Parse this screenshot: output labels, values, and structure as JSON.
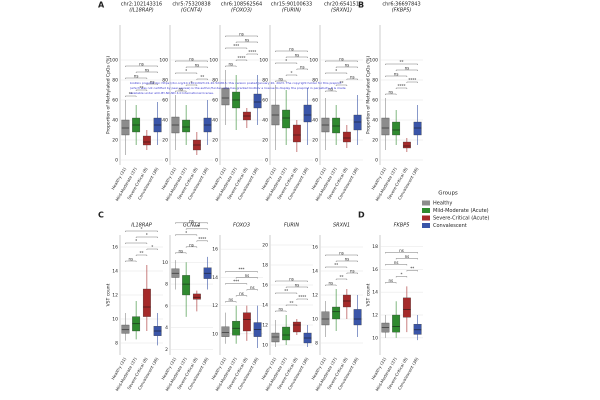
{
  "chart_data": [
    {
      "type": "box",
      "panel": "A",
      "title": "chr2:102143316",
      "subtitle": "(IL18RAP)",
      "ylabel": "Proportion of Methylated CpGs (%)",
      "categories": [
        "Healthy (31)",
        "Mild-Moderate (37)",
        "Severe-Critical (8)",
        "Convalescent (36)"
      ],
      "values": [
        [
          5,
          25,
          32,
          40,
          60
        ],
        [
          15,
          28,
          35,
          42,
          55
        ],
        [
          10,
          15,
          18,
          24,
          30
        ],
        [
          15,
          28,
          35,
          42,
          58
        ]
      ],
      "ylim": [
        -5,
        135
      ],
      "yticks": [
        0,
        20,
        40,
        60,
        80,
        100
      ],
      "significance": [
        "**",
        "**",
        "ns",
        "ns",
        "ns",
        "ns"
      ]
    },
    {
      "type": "box",
      "title": "chr5:75320838",
      "subtitle": "(GCNT4)",
      "categories": [
        "Healthy (31)",
        "Mild-Moderate (37)",
        "Severe-Critical (8)",
        "Convalescent (36)"
      ],
      "values": [
        [
          10,
          27,
          35,
          43,
          65
        ],
        [
          15,
          28,
          33,
          40,
          55
        ],
        [
          5,
          10,
          15,
          20,
          28
        ],
        [
          15,
          28,
          35,
          42,
          60
        ]
      ],
      "ylim": [
        -5,
        135
      ],
      "yticks": [
        0,
        20,
        40,
        60,
        80,
        100
      ],
      "significance": [
        "ns",
        "*",
        "**",
        "*",
        "ns",
        "ns"
      ]
    },
    {
      "type": "box",
      "title": "chr6:108562564",
      "subtitle": "(FOXO3)",
      "categories": [
        "Healthy (31)",
        "Mild-Moderate (37)",
        "Severe-Critical (8)",
        "Convalescent (36)"
      ],
      "values": [
        [
          35,
          55,
          62,
          72,
          90
        ],
        [
          30,
          52,
          60,
          68,
          85
        ],
        [
          32,
          40,
          44,
          48,
          52
        ],
        [
          35,
          52,
          58,
          66,
          85
        ]
      ],
      "ylim": [
        -5,
        135
      ],
      "yticks": [
        0,
        20,
        40,
        60,
        80,
        100
      ],
      "significance": [
        "ns",
        "****",
        "****",
        "***",
        "ns",
        "ns"
      ]
    },
    {
      "type": "box",
      "title": "chr15:90100633",
      "subtitle": "(FURIN)",
      "categories": [
        "Healthy (31)",
        "Mild-Moderate (37)",
        "Severe-Critical (8)",
        "Convalescent (36)"
      ],
      "values": [
        [
          10,
          35,
          45,
          55,
          75
        ],
        [
          15,
          32,
          42,
          50,
          70
        ],
        [
          8,
          18,
          25,
          35,
          40
        ],
        [
          15,
          38,
          45,
          55,
          72
        ]
      ],
      "ylim": [
        -5,
        135
      ],
      "yticks": [
        0,
        20,
        40,
        60,
        80,
        100
      ],
      "significance": [
        "ns",
        "*",
        "ns",
        "*",
        "ns",
        "ns"
      ]
    },
    {
      "type": "box",
      "title": "chr20:654151",
      "subtitle": "(SRXN1)",
      "categories": [
        "Healthy (31)",
        "Mild-Moderate (37)",
        "Severe-Critical (8)",
        "Convalescent (36)"
      ],
      "values": [
        [
          10,
          28,
          35,
          42,
          62
        ],
        [
          15,
          27,
          34,
          42,
          55
        ],
        [
          12,
          18,
          22,
          28,
          35
        ],
        [
          15,
          30,
          38,
          45,
          65
        ]
      ],
      "ylim": [
        -5,
        135
      ],
      "yticks": [
        0,
        20,
        40,
        60,
        80,
        100
      ],
      "significance": [
        "ns",
        "**",
        "ns",
        "*",
        "ns",
        "ns"
      ]
    },
    {
      "type": "box",
      "panel": "B",
      "title": "chr6:36697843",
      "subtitle": "(FKBP5)",
      "ylabel": "Proportion of Methylated CpGs (%)",
      "categories": [
        "Healthy (31)",
        "Mild-Moderate (37)",
        "Severe-Critical (8)",
        "Convalescent (36)"
      ],
      "values": [
        [
          10,
          25,
          32,
          42,
          62
        ],
        [
          15,
          25,
          30,
          38,
          50
        ],
        [
          8,
          12,
          14,
          18,
          22
        ],
        [
          15,
          25,
          32,
          38,
          55
        ]
      ],
      "ylim": [
        -5,
        135
      ],
      "yticks": [
        0,
        20,
        40,
        60,
        80,
        100
      ],
      "significance": [
        "ns",
        "****",
        "****",
        "ns",
        "ns",
        "**"
      ]
    },
    {
      "type": "box",
      "panel": "C",
      "title": "IL18RAP",
      "ylabel": "VST count",
      "categories": [
        "Healthy (31)",
        "Mild-Moderate (37)",
        "Severe-Critical (8)",
        "Convalescent (36)"
      ],
      "values": [
        [
          8.2,
          8.8,
          9.1,
          9.5,
          10.5
        ],
        [
          8.3,
          9,
          9.6,
          10.2,
          11.5
        ],
        [
          9,
          10.2,
          11,
          12.5,
          14.5
        ],
        [
          7.8,
          8.6,
          9,
          9.4,
          10.5
        ]
      ],
      "ylim": [
        7,
        17
      ],
      "yticks": [
        8,
        10,
        12,
        14,
        16
      ],
      "significance": [
        "ns",
        "**",
        "*",
        "*",
        "*",
        "*"
      ]
    },
    {
      "type": "box",
      "title": "GCNT4",
      "categories": [
        "Healthy (31)",
        "Mild-Moderate (37)",
        "Severe-Critical (8)",
        "Convalescent (36)"
      ],
      "values": [
        [
          7.5,
          8.6,
          9,
          9.4,
          10.2
        ],
        [
          5,
          7,
          8,
          8.8,
          10
        ],
        [
          5.5,
          6.6,
          6.8,
          7.1,
          7.4
        ],
        [
          7.5,
          8.5,
          9,
          9.5,
          10.5
        ]
      ],
      "ylim": [
        1.5,
        12.5
      ],
      "yticks": [
        2,
        4,
        6,
        8,
        10
      ],
      "significance": [
        "ns",
        "ns",
        "****",
        "*",
        "***",
        "ns"
      ]
    },
    {
      "type": "box",
      "title": "FOXO3",
      "categories": [
        "Healthy (31)",
        "Mild-Moderate (37)",
        "Severe-Critical (8)",
        "Convalescent (36)"
      ],
      "values": [
        [
          9.3,
          9.8,
          10.1,
          10.5,
          11.5
        ],
        [
          9.3,
          9.9,
          10.4,
          10.9,
          12
        ],
        [
          9.5,
          10.2,
          11,
          11.5,
          12
        ],
        [
          9,
          9.8,
          10.3,
          10.8,
          12
        ]
      ],
      "ylim": [
        8.5,
        17
      ],
      "yticks": [
        10,
        12,
        14,
        16
      ],
      "significance": [
        "ns",
        "ns",
        "ns",
        "***",
        "ns",
        "***"
      ]
    },
    {
      "type": "box",
      "title": "FURIN",
      "categories": [
        "Healthy (31)",
        "Mild-Moderate (37)",
        "Severe-Critical (8)",
        "Convalescent (36)"
      ],
      "values": [
        [
          9.8,
          10.3,
          10.8,
          11.2,
          12.5
        ],
        [
          10,
          10.5,
          11,
          11.8,
          13
        ],
        [
          11,
          11.3,
          12,
          12.3,
          12.6
        ],
        [
          9.8,
          10.2,
          10.7,
          11.2,
          12
        ]
      ],
      "ylim": [
        9,
        21
      ],
      "yticks": [
        10,
        12,
        14,
        16,
        18,
        20
      ],
      "significance": [
        "ns",
        "**",
        "****",
        "**",
        "ns",
        "ns"
      ]
    },
    {
      "type": "box",
      "title": "SRXN1",
      "categories": [
        "Healthy (31)",
        "Mild-Moderate (37)",
        "Severe-Critical (8)",
        "Convalescent (36)"
      ],
      "values": [
        [
          8.5,
          9.5,
          10,
          10.6,
          11.5
        ],
        [
          9,
          10,
          10.6,
          11,
          12.5
        ],
        [
          10,
          11,
          11.5,
          12,
          12.5
        ],
        [
          8.5,
          9.5,
          10,
          10.8,
          12
        ]
      ],
      "ylim": [
        7,
        17
      ],
      "yticks": [
        8,
        10,
        12,
        14,
        16
      ],
      "significance": [
        "ns",
        "**",
        "ns",
        "**",
        "ns",
        "ns"
      ]
    },
    {
      "type": "box",
      "panel": "D",
      "title": "FKBP5",
      "ylabel": "VST count",
      "categories": [
        "Healthy (31)",
        "Mild-Moderate (37)",
        "Severe-Critical (8)",
        "Convalescent (36)"
      ],
      "values": [
        [
          10,
          10.5,
          10.9,
          11.3,
          12
        ],
        [
          10,
          10.5,
          11,
          12,
          13.2
        ],
        [
          10.5,
          11.8,
          12.5,
          13.5,
          14.5
        ],
        [
          9.8,
          10.3,
          10.7,
          11.2,
          12
        ]
      ],
      "ylim": [
        8.5,
        19
      ],
      "yticks": [
        10,
        12,
        14,
        16,
        18
      ],
      "significance": [
        "ns",
        "*",
        "**",
        "ns",
        "ns",
        "ns"
      ]
    }
  ],
  "legend": {
    "title": "Groups",
    "items": [
      {
        "name": "Healthy",
        "color": "#8c8c8c"
      },
      {
        "name": "Mild-Moderate (Acute)",
        "color": "#2f8a2f"
      },
      {
        "name": "Severe-Critical (Acute)",
        "color": "#a52a2a"
      },
      {
        "name": "Convalescent",
        "color": "#3a55a8"
      }
    ]
  },
  "watermark": [
    "bioRxiv preprint doi: https://doi.org/10.1101/2023.01.20.524815; this version posted January 20, 2023. The copyright holder for this preprint",
    "(which was not certified by peer review) is the author/funder, who has granted bioRxiv a license to display the preprint in perpetuity. It is made",
    "available under aCC-BY-NC-ND 4.0 International license."
  ]
}
